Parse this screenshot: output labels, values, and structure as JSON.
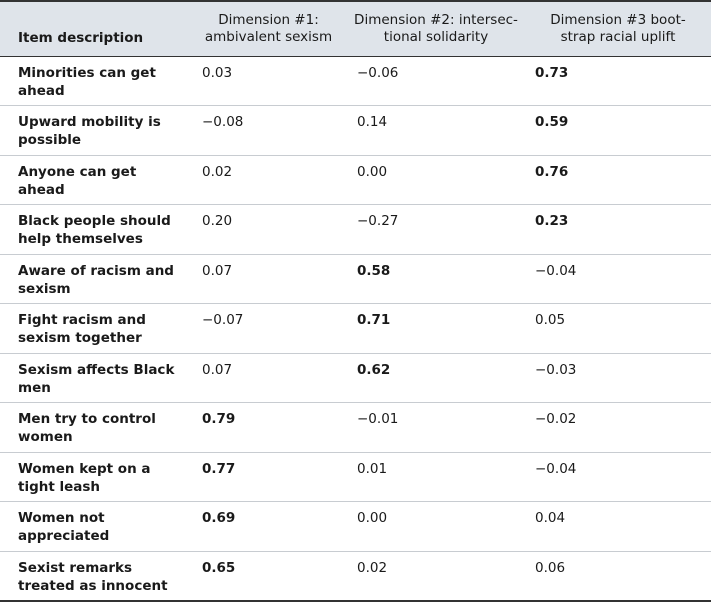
{
  "table": {
    "headers": [
      {
        "lines": [
          "Item description"
        ]
      },
      {
        "lines": [
          "Dimension #1:",
          "ambivalent sexism"
        ]
      },
      {
        "lines": [
          "Dimension #2: intersec-",
          "tional solidarity"
        ]
      },
      {
        "lines": [
          "Dimension #3 boot-",
          "strap racial uplift"
        ]
      }
    ],
    "rows": [
      {
        "item": "Minorities can get ahead",
        "values": [
          "0.03",
          "−0.06",
          "0.73"
        ],
        "bold": [
          false,
          false,
          true
        ]
      },
      {
        "item": "Upward mobility is possible",
        "values": [
          "−0.08",
          "0.14",
          "0.59"
        ],
        "bold": [
          false,
          false,
          true
        ]
      },
      {
        "item": "Anyone can get ahead",
        "values": [
          "0.02",
          "0.00",
          "0.76"
        ],
        "bold": [
          false,
          false,
          true
        ]
      },
      {
        "item": "Black people should help themselves",
        "values": [
          "0.20",
          "−0.27",
          "0.23"
        ],
        "bold": [
          false,
          false,
          true
        ]
      },
      {
        "item": "Aware of racism and sexism",
        "values": [
          "0.07",
          "0.58",
          "−0.04"
        ],
        "bold": [
          false,
          true,
          false
        ]
      },
      {
        "item": "Fight racism and sexism together",
        "values": [
          "−0.07",
          "0.71",
          "0.05"
        ],
        "bold": [
          false,
          true,
          false
        ]
      },
      {
        "item": "Sexism affects Black men",
        "values": [
          "0.07",
          "0.62",
          "−0.03"
        ],
        "bold": [
          false,
          true,
          false
        ]
      },
      {
        "item": "Men try to control women",
        "values": [
          "0.79",
          "−0.01",
          "−0.02"
        ],
        "bold": [
          true,
          false,
          false
        ]
      },
      {
        "item": "Women kept on a tight leash",
        "values": [
          "0.77",
          "0.01",
          "−0.04"
        ],
        "bold": [
          true,
          false,
          false
        ]
      },
      {
        "item": "Women not appreciated",
        "values": [
          "0.69",
          "0.00",
          "0.04"
        ],
        "bold": [
          true,
          false,
          false
        ]
      },
      {
        "item": "Sexist remarks treated as innocent",
        "values": [
          "0.65",
          "0.02",
          "0.06"
        ],
        "bold": [
          true,
          false,
          false
        ]
      }
    ]
  }
}
